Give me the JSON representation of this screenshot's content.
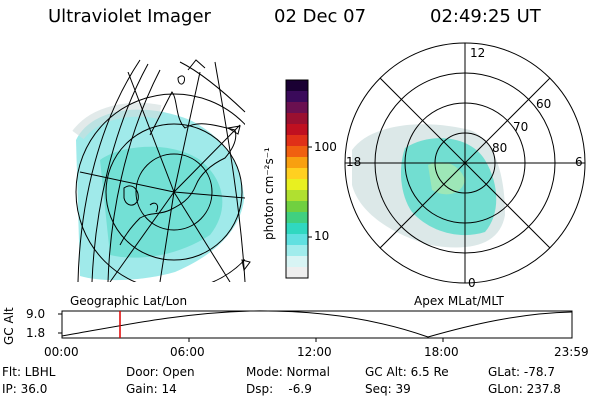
{
  "header": {
    "instrument": "Ultraviolet Imager",
    "date": "02 Dec 07",
    "time": "02:49:25 UT"
  },
  "colorbar": {
    "label": "photon cm⁻²s⁻¹",
    "ticks": [
      "100",
      "10"
    ],
    "colors": [
      "#1a0033",
      "#3a0a5a",
      "#6a1050",
      "#9a1030",
      "#c01020",
      "#e03018",
      "#f06010",
      "#f8a010",
      "#ffd020",
      "#e8f020",
      "#b0e030",
      "#70d040",
      "#40d080",
      "#30d8c0",
      "#60e0e0",
      "#a0ecec",
      "#d8f4f4",
      "#eeeeee"
    ]
  },
  "geo_map": {
    "label": "Geographic Lat/Lon"
  },
  "polar_plot": {
    "label": "Apex MLat/MLT",
    "mlt_labels": [
      "12",
      "18",
      "6",
      "0"
    ],
    "lat_labels": [
      "60",
      "70",
      "80"
    ]
  },
  "altitude_strip": {
    "ylabel": "GC Alt",
    "y_ticks": [
      "9.0",
      "1.8"
    ],
    "x_ticks": [
      "00:00",
      "06:00",
      "12:00",
      "18:00",
      "23:59"
    ],
    "marker_time": "02:49:25"
  },
  "status": {
    "flt": "Flt: LBHL",
    "ip": "IP: 36.0",
    "door": "Door: Open",
    "gain": "Gain: 14",
    "mode": "Mode: Normal",
    "dsp": "Dsp:    -6.9",
    "gcalt": "GC Alt: 6.5 Re",
    "seq": "Seq: 39",
    "glat": "GLat: -78.7",
    "glon": "GLon: 237.8"
  }
}
